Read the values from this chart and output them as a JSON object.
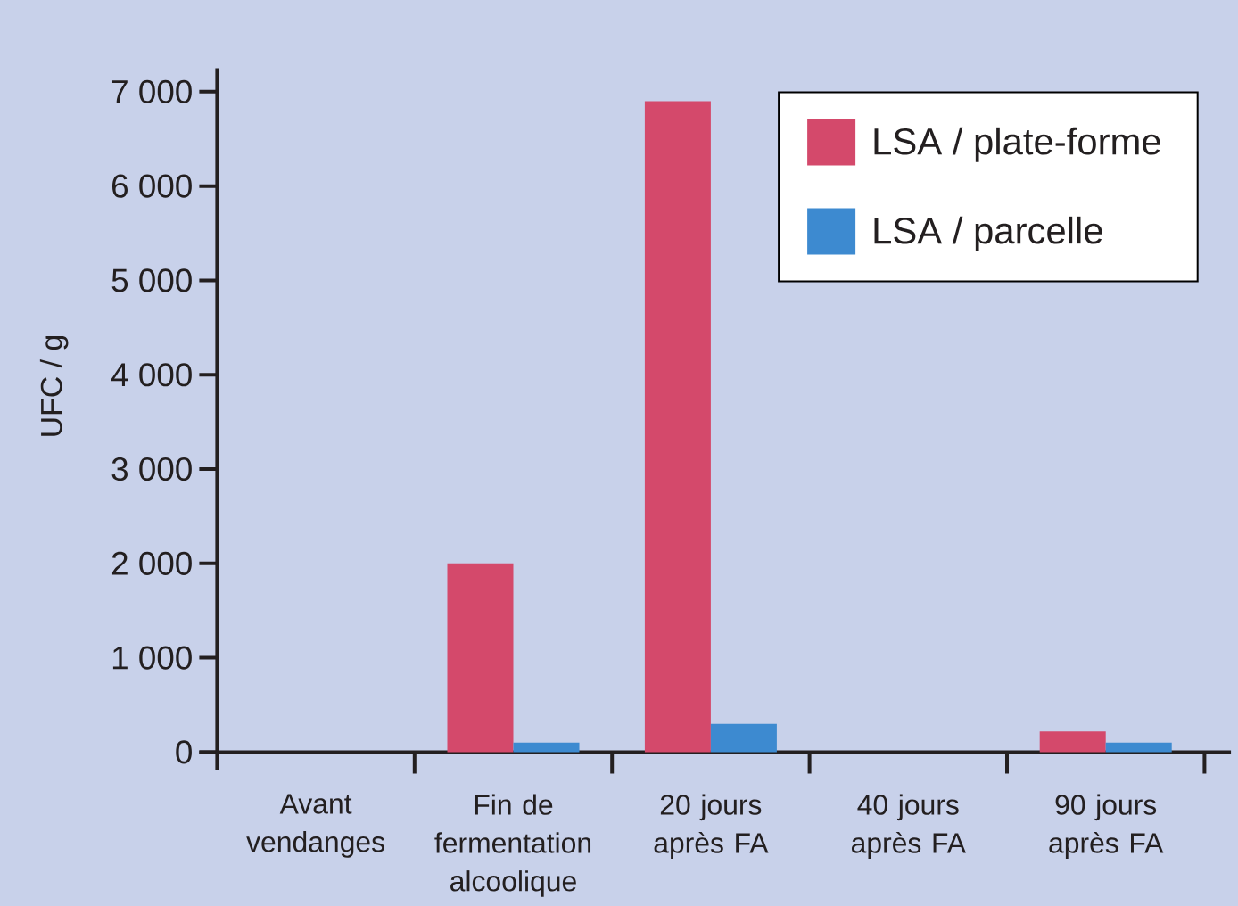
{
  "chart_data": {
    "type": "bar",
    "ylabel": "UFC / g",
    "categories": [
      "Avant vendanges",
      "Fin de fermentation alcoolique",
      "20 jours après FA",
      "40 jours après FA",
      "90 jours après FA"
    ],
    "series": [
      {
        "name": "LSA / plate-forme",
        "color": "#d4496b",
        "values": [
          null,
          2000,
          6900,
          null,
          220
        ]
      },
      {
        "name": "LSA / parcelle",
        "color": "#3d8ad0",
        "values": [
          null,
          100,
          300,
          null,
          100
        ]
      }
    ],
    "ylim": [
      0,
      7250
    ],
    "yticks": [
      0,
      {
        "value": 1000,
        "label": "1 000"
      },
      {
        "value": 2000,
        "label": "2 000"
      },
      {
        "value": 3000,
        "label": "3 000"
      },
      {
        "value": 4000,
        "label": "4 000"
      },
      {
        "value": 5000,
        "label": "5 000"
      },
      {
        "value": 6000,
        "label": "6 000"
      },
      {
        "value": 7000,
        "label": "7 000"
      }
    ],
    "legend": "top right"
  }
}
